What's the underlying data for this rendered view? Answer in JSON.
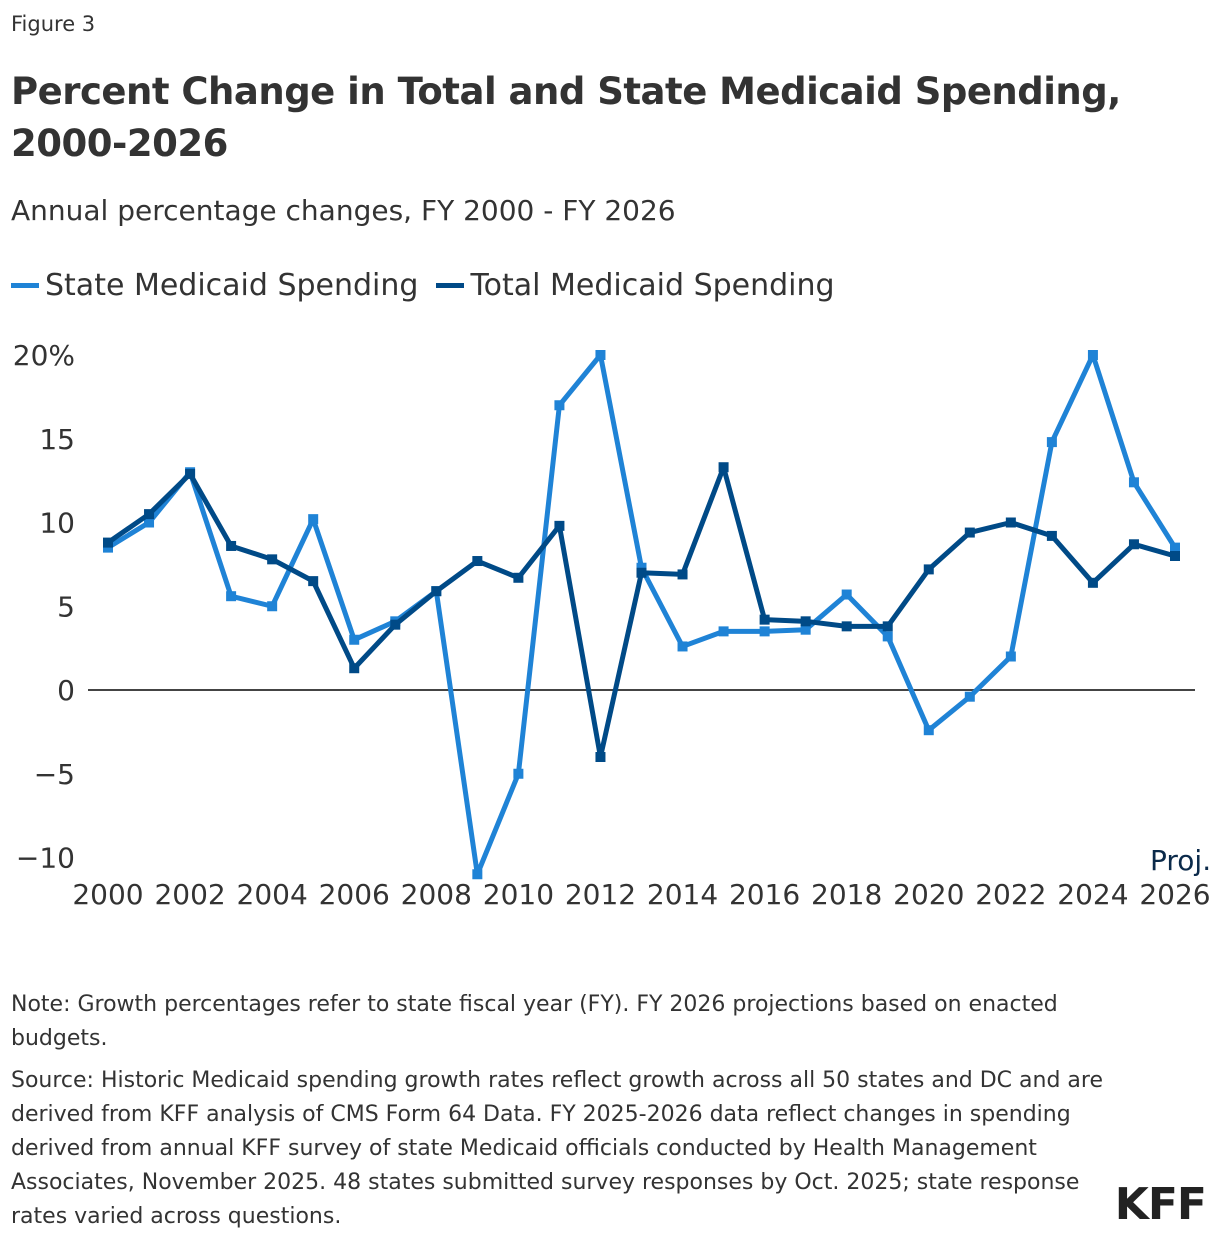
{
  "figure_label": "Figure 3",
  "chart_data": {
    "type": "line",
    "title": "Percent Change in Total and State Medicaid Spending, 2000-2026",
    "subtitle": "Annual percentage changes, FY 2000 - FY 2026",
    "x": [
      2000,
      2001,
      2002,
      2003,
      2004,
      2005,
      2006,
      2007,
      2008,
      2009,
      2010,
      2011,
      2012,
      2013,
      2014,
      2015,
      2016,
      2017,
      2018,
      2019,
      2020,
      2021,
      2022,
      2023,
      2024,
      2025,
      2026
    ],
    "x_tick_labels": [
      "2000",
      "2002",
      "2004",
      "2006",
      "2008",
      "2010",
      "2012",
      "2014",
      "2016",
      "2018",
      "2020",
      "2022",
      "2024",
      "2026"
    ],
    "y_tick_labels": [
      "20%",
      "15",
      "10",
      "5",
      "0",
      "−5",
      "−10"
    ],
    "y_ticks": [
      20,
      15,
      10,
      5,
      0,
      -5,
      -10
    ],
    "ylim": [
      -11,
      20
    ],
    "grid": false,
    "legend_position": "top-left",
    "annotation": "Proj.",
    "series": [
      {
        "name": "State Medicaid Spending",
        "color": "#1f83d6",
        "values": [
          8.5,
          10.0,
          13.0,
          5.6,
          5.0,
          10.2,
          3.0,
          4.1,
          5.9,
          -11.0,
          -5.0,
          17.0,
          20.0,
          7.3,
          2.6,
          3.5,
          3.5,
          3.6,
          5.7,
          3.2,
          -2.4,
          -0.4,
          2.0,
          14.8,
          20.0,
          12.4,
          8.5
        ]
      },
      {
        "name": "Total Medicaid Spending",
        "color": "#004a87",
        "values": [
          8.8,
          10.5,
          12.9,
          8.6,
          7.8,
          6.5,
          1.3,
          3.9,
          5.9,
          7.7,
          6.7,
          9.8,
          -4.0,
          7.0,
          6.9,
          13.3,
          4.2,
          4.1,
          3.8,
          3.8,
          7.2,
          9.4,
          10.0,
          9.2,
          6.4,
          8.7,
          8.0
        ]
      }
    ]
  },
  "notes": {
    "note": "Note: Growth percentages refer to state fiscal year (FY). FY 2026 projections based on enacted budgets.",
    "source": "Source: Historic Medicaid spending growth rates reflect growth across all 50 states and DC and are derived from KFF analysis of CMS Form 64 Data. FY 2025-2026 data reflect changes in spending derived from annual KFF survey of state Medicaid officials conducted by Health Management Associates, November 2025. 48 states submitted survey responses by Oct. 2025; state response rates varied across questions."
  },
  "logo": "KFF"
}
